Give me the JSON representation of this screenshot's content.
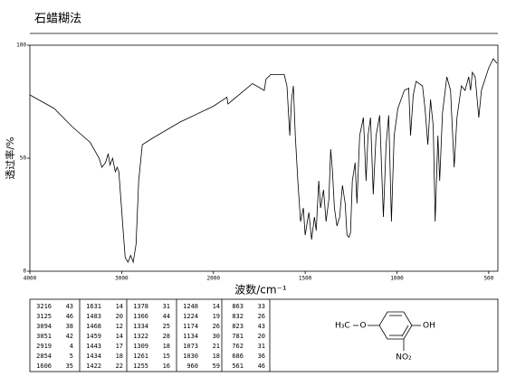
{
  "chart_data": {
    "type": "line",
    "title": "石蜡糊法",
    "xlabel": "波数/cm⁻¹",
    "ylabel": "透过率/%",
    "xscale": "piecewise",
    "xlim": [
      4000,
      450
    ],
    "xticks": [
      4000,
      3000,
      2000,
      1500,
      1000,
      500
    ],
    "ylim": [
      0,
      100
    ],
    "yticks": [
      0,
      50,
      100
    ],
    "x": [
      4000,
      3735,
      3540,
      3343,
      3245,
      3216,
      3176,
      3147,
      3127,
      3098,
      3069,
      3049,
      3030,
      2980,
      2961,
      2931,
      2902,
      2873,
      2843,
      2814,
      2775,
      2657,
      2363,
      2000,
      1926,
      1921,
      1787,
      1723,
      1713,
      1688,
      1614,
      1599,
      1584,
      1574,
      1564,
      1554,
      1540,
      1525,
      1510,
      1500,
      1480,
      1465,
      1450,
      1440,
      1426,
      1416,
      1400,
      1386,
      1371,
      1361,
      1351,
      1341,
      1327,
      1312,
      1297,
      1282,
      1272,
      1262,
      1253,
      1243,
      1228,
      1218,
      1203,
      1183,
      1168,
      1158,
      1144,
      1129,
      1114,
      1094,
      1074,
      1059,
      1045,
      1030,
      1015,
      995,
      960,
      936,
      926,
      911,
      896,
      861,
      847,
      832,
      817,
      802,
      792,
      777,
      767,
      752,
      728,
      708,
      688,
      673,
      649,
      629,
      609,
      599,
      589,
      574,
      554,
      540,
      500,
      475,
      455
    ],
    "series": [
      {
        "name": "透过率",
        "color": "#000000",
        "values": [
          78,
          72,
          64,
          57,
          50,
          46,
          48,
          52,
          47,
          50,
          44,
          46,
          44,
          16,
          6,
          4,
          7,
          4,
          12,
          40,
          56,
          59,
          66,
          73,
          77,
          74,
          83,
          80,
          85,
          87,
          87,
          82,
          60,
          76,
          82,
          60,
          40,
          22,
          28,
          16,
          26,
          14,
          24,
          18,
          40,
          28,
          36,
          22,
          32,
          54,
          44,
          28,
          20,
          24,
          38,
          30,
          16,
          15,
          17,
          40,
          48,
          30,
          60,
          68,
          40,
          60,
          68,
          34,
          60,
          69,
          24,
          56,
          69,
          22,
          60,
          72,
          80,
          81,
          60,
          78,
          84,
          82,
          72,
          56,
          76,
          64,
          22,
          60,
          40,
          70,
          86,
          80,
          46,
          68,
          82,
          80,
          86,
          80,
          88,
          86,
          68,
          80,
          90,
          94,
          92
        ]
      }
    ]
  },
  "peak_table": {
    "rows": [
      [
        3216,
        43,
        1631,
        14,
        1378,
        31,
        1248,
        14,
        863,
        33
      ],
      [
        3125,
        46,
        1483,
        20,
        1366,
        44,
        1224,
        19,
        832,
        26
      ],
      [
        3094,
        38,
        1468,
        12,
        1334,
        25,
        1174,
        26,
        823,
        43
      ],
      [
        3051,
        42,
        1459,
        14,
        1322,
        28,
        1134,
        30,
        781,
        20
      ],
      [
        2919,
        4,
        1443,
        17,
        1309,
        18,
        1073,
        21,
        762,
        31
      ],
      [
        2854,
        5,
        1434,
        18,
        1261,
        15,
        1030,
        18,
        686,
        36
      ],
      [
        1606,
        35,
        1422,
        22,
        1255,
        16,
        960,
        59,
        561,
        46
      ]
    ]
  },
  "structure": {
    "labels": [
      "H₃C",
      "O",
      "OH",
      "NO₂"
    ]
  }
}
